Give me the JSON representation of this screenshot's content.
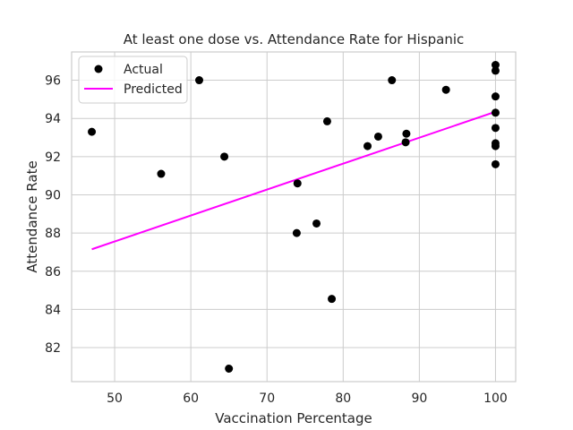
{
  "chart_data": {
    "type": "scatter",
    "title": "At least one dose vs. Attendance Rate for Hispanic",
    "xlabel": "Vaccination Percentage",
    "ylabel": "Attendance Rate",
    "xlim": [
      44.35,
      102.65
    ],
    "ylim": [
      80.22,
      97.48
    ],
    "xticks": [
      50,
      60,
      70,
      80,
      90,
      100
    ],
    "yticks": [
      82,
      84,
      86,
      88,
      90,
      92,
      94,
      96
    ],
    "grid": true,
    "legend_position": "top-left",
    "colors": {
      "actual": "#000000",
      "predicted": "#ff00ff",
      "grid": "#cccccc",
      "spine": "#cccccc"
    },
    "series": [
      {
        "name": "Actual",
        "kind": "scatter",
        "points": [
          [
            47.0,
            93.3
          ],
          [
            56.1,
            91.1
          ],
          [
            61.1,
            96.0
          ],
          [
            64.4,
            92.0
          ],
          [
            65.0,
            80.9
          ],
          [
            73.9,
            88.0
          ],
          [
            74.0,
            90.6
          ],
          [
            76.5,
            88.5
          ],
          [
            77.9,
            93.85
          ],
          [
            78.5,
            84.55
          ],
          [
            83.2,
            92.55
          ],
          [
            84.6,
            93.05
          ],
          [
            86.4,
            96.0
          ],
          [
            88.2,
            92.75
          ],
          [
            88.3,
            93.2
          ],
          [
            93.5,
            95.5
          ],
          [
            100.0,
            96.8
          ],
          [
            100.0,
            96.5
          ],
          [
            100.0,
            95.15
          ],
          [
            100.0,
            94.3
          ],
          [
            100.0,
            93.5
          ],
          [
            100.0,
            92.7
          ],
          [
            100.0,
            92.55
          ],
          [
            100.0,
            91.6
          ]
        ]
      },
      {
        "name": "Predicted",
        "kind": "line",
        "points": [
          [
            47.0,
            87.15
          ],
          [
            100.0,
            94.35
          ]
        ]
      }
    ]
  }
}
